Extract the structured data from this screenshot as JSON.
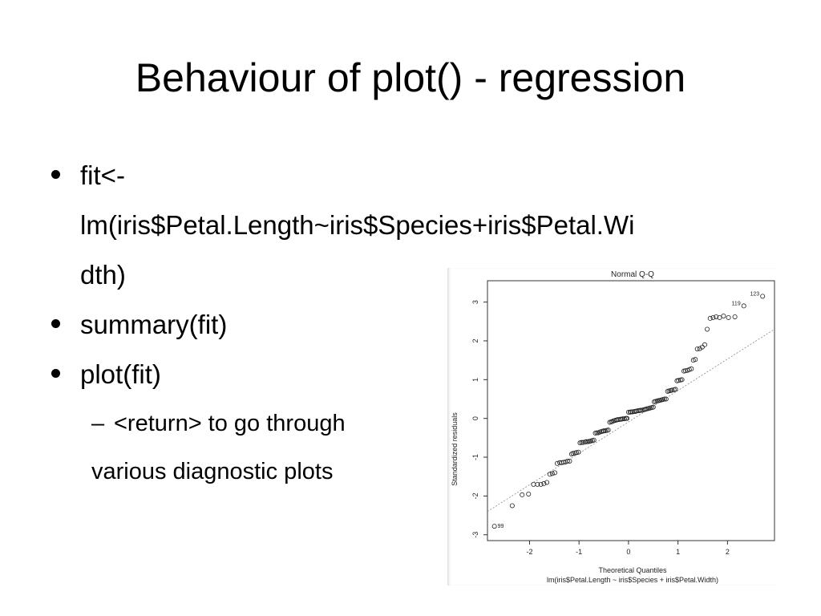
{
  "slide": {
    "title": "Behaviour of plot() - regression",
    "bullets": [
      {
        "text": "fit<-\nlm(iris$Petal.Length~iris$Species+iris$Petal.Wi\ndth)"
      },
      {
        "text": "summary(fit)"
      },
      {
        "text": "plot(fit)"
      }
    ],
    "sub_bullet": {
      "dash": "–",
      "line1": "<return> to go through",
      "line2": "various diagnostic plots"
    }
  },
  "chart_data": {
    "type": "scatter",
    "title": "Normal Q-Q",
    "xlabel": "Theoretical Quantiles",
    "subtitle": "lm(iris$Petal.Length ~ iris$Species + iris$Petal.Width)",
    "ylabel": "Standardized residuals",
    "xlim": [
      -2.85,
      2.95
    ],
    "ylim": [
      -3.15,
      3.55
    ],
    "x_ticks": [
      "-2",
      "-1",
      "0",
      "1",
      "2"
    ],
    "y_ticks": [
      "-3",
      "-2",
      "-1",
      "0",
      "1",
      "2",
      "3"
    ],
    "reference_line": {
      "x": [
        -2.85,
        2.95
      ],
      "y": [
        -2.4,
        2.3
      ]
    },
    "labeled_points": [
      {
        "label": "99",
        "x": -2.71,
        "y": -2.78
      },
      {
        "label": "119",
        "x": 2.33,
        "y": 2.9
      },
      {
        "label": "123",
        "x": 2.71,
        "y": 3.15
      }
    ],
    "points": [
      [
        -2.71,
        -2.78
      ],
      [
        -2.35,
        -2.25
      ],
      [
        -2.15,
        -1.97
      ],
      [
        -2.02,
        -1.95
      ],
      [
        -1.92,
        -1.7
      ],
      [
        -1.84,
        -1.7
      ],
      [
        -1.77,
        -1.7
      ],
      [
        -1.71,
        -1.68
      ],
      [
        -1.65,
        -1.65
      ],
      [
        -1.59,
        -1.44
      ],
      [
        -1.54,
        -1.42
      ],
      [
        -1.49,
        -1.4
      ],
      [
        -1.44,
        -1.16
      ],
      [
        -1.39,
        -1.14
      ],
      [
        -1.35,
        -1.14
      ],
      [
        -1.31,
        -1.13
      ],
      [
        -1.27,
        -1.12
      ],
      [
        -1.23,
        -1.1
      ],
      [
        -1.19,
        -1.1
      ],
      [
        -1.15,
        -0.92
      ],
      [
        -1.12,
        -0.9
      ],
      [
        -1.08,
        -0.89
      ],
      [
        -1.05,
        -0.88
      ],
      [
        -1.01,
        -0.87
      ],
      [
        -0.98,
        -0.63
      ],
      [
        -0.95,
        -0.62
      ],
      [
        -0.92,
        -0.62
      ],
      [
        -0.88,
        -0.61
      ],
      [
        -0.85,
        -0.6
      ],
      [
        -0.82,
        -0.6
      ],
      [
        -0.79,
        -0.59
      ],
      [
        -0.76,
        -0.58
      ],
      [
        -0.73,
        -0.57
      ],
      [
        -0.7,
        -0.56
      ],
      [
        -0.67,
        -0.38
      ],
      [
        -0.64,
        -0.37
      ],
      [
        -0.61,
        -0.37
      ],
      [
        -0.58,
        -0.35
      ],
      [
        -0.55,
        -0.34
      ],
      [
        -0.52,
        -0.33
      ],
      [
        -0.5,
        -0.32
      ],
      [
        -0.47,
        -0.32
      ],
      [
        -0.44,
        -0.31
      ],
      [
        -0.41,
        -0.3
      ],
      [
        -0.38,
        -0.1
      ],
      [
        -0.35,
        -0.09
      ],
      [
        -0.33,
        -0.08
      ],
      [
        -0.3,
        -0.06
      ],
      [
        -0.27,
        -0.05
      ],
      [
        -0.24,
        -0.04
      ],
      [
        -0.22,
        -0.03
      ],
      [
        -0.19,
        -0.03
      ],
      [
        -0.16,
        -0.02
      ],
      [
        -0.14,
        -0.02
      ],
      [
        -0.11,
        -0.01
      ],
      [
        -0.08,
        -0.01
      ],
      [
        -0.05,
        0.0
      ],
      [
        -0.03,
        0.0
      ],
      [
        0.0,
        0.16
      ],
      [
        0.03,
        0.16
      ],
      [
        0.05,
        0.17
      ],
      [
        0.08,
        0.17
      ],
      [
        0.11,
        0.18
      ],
      [
        0.14,
        0.18
      ],
      [
        0.16,
        0.19
      ],
      [
        0.19,
        0.2
      ],
      [
        0.22,
        0.2
      ],
      [
        0.24,
        0.21
      ],
      [
        0.27,
        0.21
      ],
      [
        0.3,
        0.22
      ],
      [
        0.33,
        0.23
      ],
      [
        0.35,
        0.24
      ],
      [
        0.38,
        0.25
      ],
      [
        0.41,
        0.26
      ],
      [
        0.44,
        0.27
      ],
      [
        0.47,
        0.28
      ],
      [
        0.5,
        0.29
      ],
      [
        0.52,
        0.43
      ],
      [
        0.55,
        0.44
      ],
      [
        0.58,
        0.45
      ],
      [
        0.61,
        0.46
      ],
      [
        0.64,
        0.47
      ],
      [
        0.67,
        0.48
      ],
      [
        0.7,
        0.49
      ],
      [
        0.73,
        0.5
      ],
      [
        0.76,
        0.5
      ],
      [
        0.79,
        0.7
      ],
      [
        0.82,
        0.71
      ],
      [
        0.85,
        0.72
      ],
      [
        0.88,
        0.73
      ],
      [
        0.92,
        0.74
      ],
      [
        0.95,
        0.75
      ],
      [
        0.98,
        0.97
      ],
      [
        1.01,
        0.98
      ],
      [
        1.05,
        0.99
      ],
      [
        1.08,
        1.0
      ],
      [
        1.12,
        1.22
      ],
      [
        1.15,
        1.23
      ],
      [
        1.19,
        1.24
      ],
      [
        1.23,
        1.26
      ],
      [
        1.27,
        1.28
      ],
      [
        1.31,
        1.5
      ],
      [
        1.35,
        1.52
      ],
      [
        1.39,
        1.79
      ],
      [
        1.44,
        1.8
      ],
      [
        1.49,
        1.84
      ],
      [
        1.54,
        1.9
      ],
      [
        1.59,
        2.3
      ],
      [
        1.65,
        2.58
      ],
      [
        1.71,
        2.6
      ],
      [
        1.77,
        2.62
      ],
      [
        1.84,
        2.6
      ],
      [
        1.92,
        2.64
      ],
      [
        2.02,
        2.6
      ],
      [
        2.15,
        2.62
      ],
      [
        2.33,
        2.9
      ],
      [
        2.71,
        3.15
      ]
    ]
  }
}
